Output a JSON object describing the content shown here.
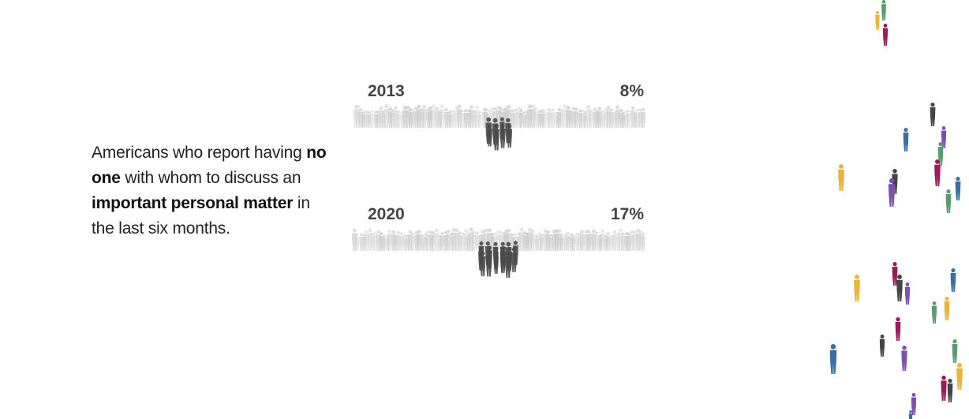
{
  "caption": {
    "lead": "Americans who report having ",
    "bold1": "no one",
    "mid1": " with whom to discuss an ",
    "bold2": "important personal matter",
    "tail": " in the last six months."
  },
  "colors": {
    "highlight": "#4a4a4a",
    "faded": "#c8c8c8",
    "crowd": [
      "#444444",
      "#7b4fb0",
      "#3a6fa0",
      "#5a9a6e",
      "#e8b53a",
      "#9c1a5a"
    ]
  },
  "chart_data": {
    "type": "pictogram",
    "title": "",
    "series": [
      {
        "name": "2013",
        "year": "2013",
        "value": 8,
        "label": "8%"
      },
      {
        "name": "2020",
        "year": "2020",
        "value": 17,
        "label": "17%"
      }
    ],
    "unit": "%",
    "ylim": [
      0,
      100
    ]
  }
}
